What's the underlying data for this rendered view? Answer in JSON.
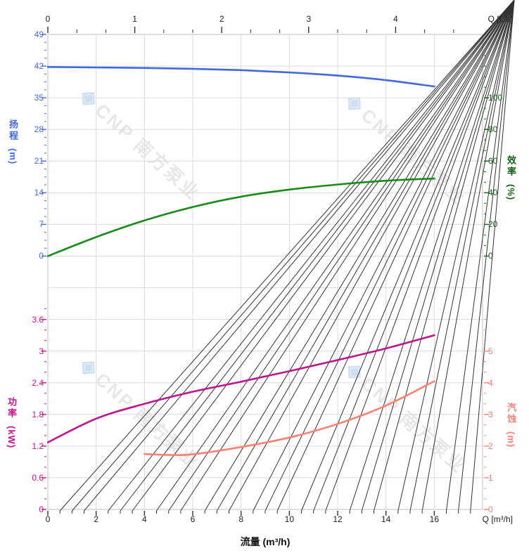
{
  "page": {
    "background": "#ffffff"
  },
  "watermark": {
    "logo_glyph": "◈",
    "text": "CNP 南方泵业"
  },
  "axes": {
    "top": {
      "label": "Q [L/s]",
      "ticks": [
        "0",
        "1",
        "2",
        "3",
        "4"
      ]
    },
    "bottom": {
      "label": "Q [m³/h]",
      "title": "流量 (m³/h)",
      "ticks": [
        "0",
        "2",
        "4",
        "6",
        "8",
        "10",
        "12",
        "14",
        "16"
      ]
    },
    "head": {
      "title": "扬程",
      "unit": "(m)",
      "color": "#4169E1",
      "ticks": [
        "49",
        "42",
        "35",
        "28",
        "21",
        "14",
        "7",
        "0"
      ]
    },
    "efficiency": {
      "title": "效率",
      "unit": "(%)",
      "color": "#135F13",
      "ticks": [
        "100",
        "80",
        "60",
        "40",
        "20",
        "0"
      ]
    },
    "power": {
      "title": "功率",
      "unit": "(kW)",
      "color": "#C0158F",
      "ticks": [
        "3.6",
        "3",
        "2.4",
        "1.8",
        "1.2",
        "0.6",
        "0"
      ]
    },
    "npsh": {
      "title": "汽蚀",
      "unit": "(m)",
      "color": "#FA8072",
      "ticks": [
        "5",
        "4",
        "3",
        "2",
        "1",
        "0"
      ]
    }
  },
  "chart_data": [
    {
      "type": "line",
      "title": "",
      "xlabel": "流量 (m³/h)",
      "x_axis": {
        "bottom_label": "Q [m³/h]",
        "top_label": "Q [L/s]",
        "range_m3h": [
          0,
          18
        ],
        "range_Ls": [
          0,
          5
        ],
        "grid": true
      },
      "series": [
        {
          "name": "扬程",
          "unit": "m",
          "color": "#4169E1",
          "ylim": [
            0,
            49
          ],
          "x": [
            0,
            2,
            4,
            6,
            8,
            10,
            12,
            14,
            16
          ],
          "y": [
            41.8,
            41.7,
            41.6,
            41.4,
            41.1,
            40.6,
            39.9,
            38.9,
            37.5
          ]
        },
        {
          "name": "效率",
          "unit": "%",
          "color": "#188A18",
          "ylim": [
            0,
            100
          ],
          "x": [
            0,
            2,
            4,
            6,
            8,
            10,
            12,
            14,
            16
          ],
          "y": [
            0,
            12,
            22.5,
            31,
            37.5,
            42,
            45.2,
            47.6,
            49
          ]
        }
      ]
    },
    {
      "type": "line",
      "title": "",
      "xlabel": "流量 (m³/h)",
      "series": [
        {
          "name": "功率",
          "unit": "kW",
          "color": "#C0158F",
          "ylim": [
            0,
            3.6
          ],
          "x": [
            0,
            2,
            4,
            6,
            8,
            10,
            12,
            14,
            16
          ],
          "y": [
            1.27,
            1.72,
            2.0,
            2.23,
            2.42,
            2.62,
            2.83,
            3.05,
            3.3
          ]
        },
        {
          "name": "汽蚀",
          "unit": "m",
          "color": "#FA8072",
          "ylim": [
            0,
            5
          ],
          "x": [
            4,
            5,
            6,
            8,
            10,
            12,
            14,
            16
          ],
          "y": [
            1.75,
            1.72,
            1.74,
            1.97,
            2.27,
            2.7,
            3.28,
            4.05
          ]
        }
      ]
    }
  ]
}
